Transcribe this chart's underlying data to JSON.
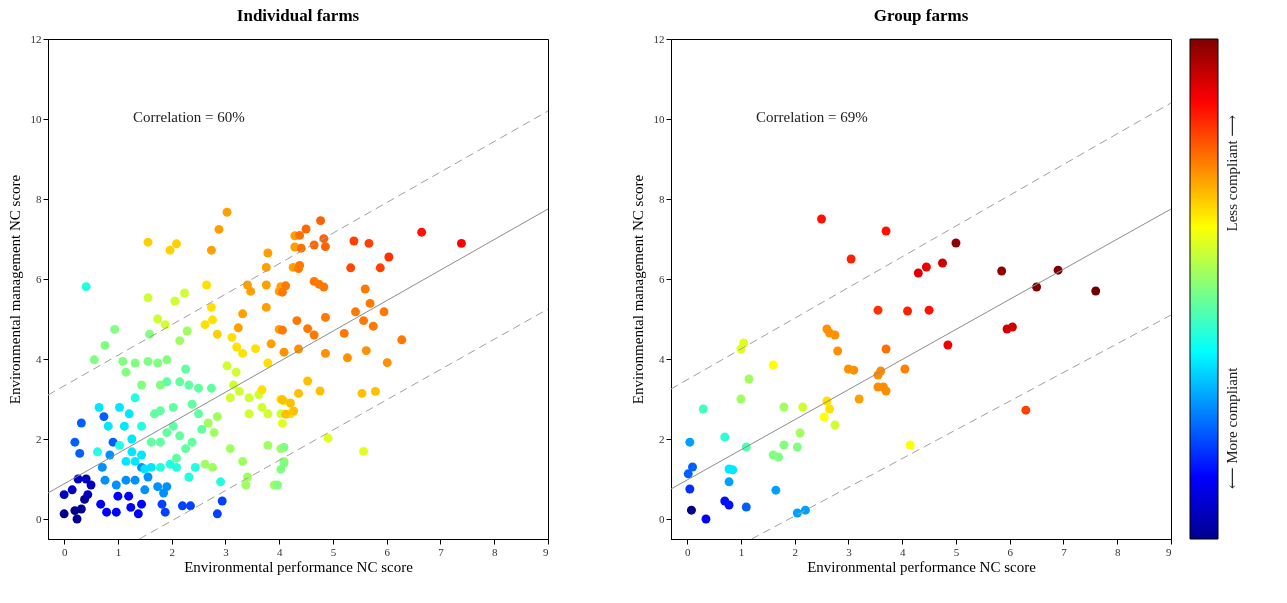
{
  "chart_data": [
    {
      "type": "scatter",
      "title": "Individual farms",
      "xlabel": "Environmental performance NC score",
      "ylabel": "Environmental management NC score",
      "xlim": [
        -0.3,
        9
      ],
      "ylim": [
        -0.5,
        12
      ],
      "xticks": [
        0,
        1,
        2,
        3,
        4,
        5,
        6,
        7,
        8,
        9
      ],
      "yticks": [
        0,
        2,
        4,
        6,
        8,
        10,
        12
      ],
      "marker": "circle",
      "annotations": [
        "Correlation = 60%"
      ],
      "series": [
        {
          "x": [
            0,
            0.24,
            0.2,
            0.32,
            0.38,
            0,
            0.15,
            0.26,
            0.41,
            0.5,
            0.44,
            0.68,
            0.79,
            0.97,
            1.0,
            1.2,
            1.24,
            1.38,
            1.44,
            1.82,
            1.88,
            2.2,
            2.35,
            2.85,
            2.94,
            0.2,
            0.29,
            0.32,
            0.74,
            0.91,
            0.97,
            0.76,
            0.71,
            0.85,
            1.15,
            1.32,
            1.44,
            1.56,
            1.74,
            1.91,
            1.85,
            1.5,
            0.65,
            0.82,
            1.03,
            1.21,
            1.12,
            1.26,
            1.26,
            1.15,
            1.32,
            1.44,
            1.5,
            1.62,
            1.79,
            1.97,
            2.09,
            2.32,
            2.44,
            1.32,
            1.44,
            0.41,
            2.91,
            0.62,
            1.03,
            0.56,
            0.76,
            0.94,
            1.09,
            1.15,
            1.32,
            1.44,
            1.59,
            1.56,
            1.74,
            1.91,
            1.79,
            1.91,
            1.68,
            1.79,
            2.03,
            1.91,
            1.79,
            1.62,
            2.03,
            2.15,
            2.09,
            2.26,
            2.38,
            2.15,
            2.26,
            2.32,
            2.38,
            2.5,
            2.5,
            2.74,
            2.56,
            2.68,
            2.79,
            2.85,
            2.62,
            2.76,
            3.09,
            3.32,
            3.41,
            3.38,
            3.91,
            3.79,
            4.03,
            4.09,
            2.15,
            2.29,
            1.56,
            2.06,
            2.24,
            1.74,
            1.88,
            3.03,
            3.15,
            3.26,
            3.44,
            3.68,
            3.79,
            3.09,
            3.2,
            3.44,
            4.03,
            3.62,
            4.09,
            2.65,
            2.74,
            2.62,
            2.76,
            3.12,
            3.21,
            3.32,
            3.56,
            3.79,
            3.68,
            4.03,
            4.21,
            1.56,
            1.97,
            2.09,
            2.85,
            2.74,
            2.88,
            3.03,
            3.41,
            3.47,
            3.76,
            4.03,
            4.0,
            3.76,
            3.32,
            3.24,
            3.85,
            4.0,
            3.79,
            3.76,
            4.26,
            4.29,
            4.29,
            4.77,
            4.5,
            4.38,
            4.83,
            4.41,
            4.65,
            4.86,
            5.39,
            5.67,
            6.65,
            7.39,
            6.04,
            5.33,
            5.88,
            4.36,
            4.38,
            4.65,
            4.74,
            4.83,
            4.12,
            4.06,
            5.6,
            5.69,
            5.42,
            5.95,
            4.86,
            4.33,
            4.06,
            4.53,
            4.65,
            5.57,
            5.75,
            5.21,
            6.28,
            4.09,
            4.36,
            4.86,
            5.27,
            5.62,
            6.01,
            4.53,
            4.76,
            4.06,
            4.21,
            4.12,
            4.27,
            4.36,
            5.54,
            5.79,
            4.06,
            4.91,
            5.57,
            4.09,
            4.09,
            4.03,
            3.97
          ],
          "values": [
            0.13,
            0,
            0.21,
            0.25,
            0.49,
            0.61,
            0.73,
            1.0,
            1.0,
            0.85,
            0.61,
            0.37,
            0.17,
            0.17,
            0.57,
            0.57,
            0.29,
            0.13,
            0.37,
            0.37,
            0.17,
            0.33,
            0.33,
            0.13,
            0.45,
            1.92,
            1.64,
            2.4,
            2.56,
            1.92,
            0.85,
            0.97,
            1.29,
            1.6,
            0.97,
            0.97,
            1.29,
            1.05,
            0.81,
            0.81,
            0.65,
            0.73,
            2.79,
            2.32,
            2.79,
            2.63,
            2.32,
            2.0,
            1.68,
            1.44,
            1.44,
            1.6,
            1.25,
            1.29,
            1.29,
            1.37,
            1.29,
            1.05,
            1.29,
            3.03,
            2.32,
            5.81,
            0.93,
            1.68,
            1.84,
            3.98,
            4.34,
            4.74,
            3.94,
            3.67,
            3.9,
            3.35,
            4.62,
            3.94,
            3.9,
            3.98,
            3.35,
            3.43,
            2.63,
            2.71,
            2.79,
            2.16,
            1.92,
            1.92,
            2.32,
            2.08,
            1.52,
            1.76,
            1.92,
            3.43,
            3.75,
            3.35,
            2.87,
            2.63,
            3.27,
            3.27,
            2.24,
            2.4,
            2.16,
            2.56,
            1.37,
            1.29,
            1.76,
            1.44,
            1.05,
            0.85,
            0.85,
            1.84,
            1.76,
            1.44,
            4.46,
            4.7,
            5.53,
            5.45,
            5.65,
            5.0,
            4.86,
            3.83,
            3.35,
            3.19,
            3.03,
            2.79,
            2.63,
            3.03,
            3.67,
            2.63,
            2.63,
            3.11,
            2.95,
            5.85,
            5.29,
            4.86,
            4.98,
            4.54,
            4.3,
            4.14,
            4.26,
            3.9,
            3.23,
            2.99,
            2.63,
            6.92,
            6.72,
            6.88,
            4.62,
            6.72,
            7.24,
            7.67,
            5.85,
            5.69,
            5.85,
            5.81,
            5.69,
            5.29,
            5.13,
            4.78,
            4.38,
            4.74,
            6.65,
            6.29,
            6.29,
            7.08,
            6.8,
            7.46,
            7.25,
            7.09,
            7.01,
            6.77,
            6.85,
            6.81,
            6.95,
            6.89,
            7.17,
            6.89,
            6.55,
            6.28,
            6.28,
            6.26,
            6.34,
            5.94,
            5.87,
            5.8,
            5.83,
            5.67,
            5.75,
            5.39,
            5.18,
            5.18,
            5.04,
            4.96,
            4.72,
            4.76,
            4.6,
            4.96,
            4.82,
            4.64,
            4.48,
            4.17,
            4.25,
            4.14,
            4.03,
            4.21,
            3.91,
            3.45,
            3.2,
            2.98,
            2.9,
            2.62,
            2.7,
            3.14,
            3.14,
            3.19,
            2.39,
            2.02,
            1.69,
            1.79,
            1.4,
            1.24,
            0.85
          ],
          "colors": [
            "#00008f",
            "#00008f",
            "#00008f",
            "#00008f",
            "#00008f",
            "#0000c0",
            "#0000c0",
            "#0000c0",
            "#0000c0",
            "#0000c0",
            "#0000c0",
            "#0000ff",
            "#0000ff",
            "#0000ff",
            "#0000ff",
            "#0000ff",
            "#0000ff",
            "#0000ff",
            "#0000ff",
            "#0040ff",
            "#0040ff",
            "#0040ff",
            "#0040ff",
            "#0040ff",
            "#0040ff",
            "#0060ff",
            "#0060ff",
            "#0060ff",
            "#0060ff",
            "#0060ff",
            "#0090ff",
            "#0090ff",
            "#0090ff",
            "#0090ff",
            "#0090ff",
            "#0090ff",
            "#0090ff",
            "#0090ff",
            "#0090ff",
            "#0090ff",
            "#0090ff",
            "#0090ff",
            "#00e8ff",
            "#00e8ff",
            "#00e8ff",
            "#00e8ff",
            "#00e8ff",
            "#00e8ff",
            "#00e8ff",
            "#00e8ff",
            "#00e8ff",
            "#00e8ff",
            "#00e8ff",
            "#00e8ff",
            "#20ffdf",
            "#20ffdf",
            "#20ffdf",
            "#20ffdf",
            "#20ffdf",
            "#20ffdf",
            "#20ffdf",
            "#20ffdf",
            "#20ffdf",
            "#20ffdf",
            "#20ffdf",
            "#80ff80",
            "#80ff80",
            "#80ff80",
            "#80ff80",
            "#80ff80",
            "#80ff80",
            "#80ff80",
            "#80ff80",
            "#80ff80",
            "#80ff80",
            "#80ff80",
            "#80ff80",
            "#60ffa0",
            "#60ffa0",
            "#60ffa0",
            "#60ffa0",
            "#60ffa0",
            "#60ffa0",
            "#60ffa0",
            "#60ffa0",
            "#60ffa0",
            "#60ffa0",
            "#60ffa0",
            "#60ffa0",
            "#60ffa0",
            "#60ffa0",
            "#60ffa0",
            "#60ffa0",
            "#60ffa0",
            "#60ffa0",
            "#60ffa0",
            "#60ffa0",
            "#a0ff60",
            "#a0ff60",
            "#a0ff60",
            "#a0ff60",
            "#a0ff60",
            "#a0ff60",
            "#a0ff60",
            "#a0ff60",
            "#a0ff60",
            "#a0ff60",
            "#a0ff60",
            "#a0ff60",
            "#a0ff60",
            "#a0ff60",
            "#a0ff60",
            "#d0ff30",
            "#d0ff30",
            "#d0ff30",
            "#d0ff30",
            "#d0ff30",
            "#d0ff30",
            "#d0ff30",
            "#d0ff30",
            "#d0ff30",
            "#d0ff30",
            "#d0ff30",
            "#d0ff30",
            "#d0ff30",
            "#d0ff30",
            "#d0ff30",
            "#d0ff30",
            "#d0ff30",
            "#ffe000",
            "#ffe000",
            "#ffe000",
            "#ffe000",
            "#ffe000",
            "#ffe000",
            "#ffe000",
            "#ffe000",
            "#ffe000",
            "#ffe000",
            "#ffe000",
            "#ffe000",
            "#ffd000",
            "#ffd000",
            "#ffd000",
            "#ffd000",
            "#ffa000",
            "#ffa000",
            "#ffa000",
            "#ffa000",
            "#ffa000",
            "#ffa000",
            "#ffa000",
            "#ffa000",
            "#ffa000",
            "#ffa000",
            "#ffa000",
            "#ffa000",
            "#ffa000",
            "#ffa000",
            "#ffa000",
            "#ffa000",
            "#ffa000",
            "#ffa000",
            "#ff6000",
            "#ff6800",
            "#ff7000",
            "#ff6000",
            "#ff7000",
            "#ff6800",
            "#ff6000",
            "#ff4000",
            "#ff4000",
            "#ff1000",
            "#ff0000",
            "#ff3000",
            "#ff4800",
            "#ff4000",
            "#ff7800",
            "#ff7800",
            "#ff7800",
            "#ff7800",
            "#ff7800",
            "#ff7800",
            "#ff7800",
            "#ff7800",
            "#ff7800",
            "#ff7800",
            "#ff7800",
            "#ff7800",
            "#ff7800",
            "#ff7800",
            "#ff7800",
            "#ff7800",
            "#ff7800",
            "#ff7800",
            "#ff7800",
            "#ff7800",
            "#ff9000",
            "#ff9000",
            "#ff9000",
            "#ff9000",
            "#ff9000",
            "#ff9000",
            "#ffc000",
            "#ffc000",
            "#ffc000",
            "#ffc000",
            "#ffc000",
            "#ffc000",
            "#ffc000",
            "#ffc000",
            "#ffc000",
            "#e0ff20",
            "#e0ff20",
            "#e0ff20",
            "#80ff80",
            "#80ff80",
            "#80ff80",
            "#80ff80"
          ]
        },
        {
          "type": "line",
          "marker": "none",
          "color": "#8c8c8c",
          "line_style": "solid",
          "x": [
            -0.3,
            9
          ],
          "values": [
            0.65,
            7.75
          ]
        },
        {
          "type": "line",
          "marker": "none",
          "color": "#a0a0a0",
          "line_style": "dashed",
          "x": [
            -0.3,
            9
          ],
          "values": [
            3.1,
            10.2
          ]
        },
        {
          "type": "line",
          "marker": "none",
          "color": "#a0a0a0",
          "line_style": "dashed",
          "x": [
            1.4,
            9
          ],
          "values": [
            -0.5,
            5.25
          ]
        }
      ]
    },
    {
      "type": "scatter",
      "title": "Group farms",
      "xlabel": "Environmental performance NC score",
      "ylabel": "Environmental management NC score",
      "xlim": [
        -0.3,
        9
      ],
      "ylim": [
        -0.5,
        12
      ],
      "xticks": [
        0,
        1,
        2,
        3,
        4,
        5,
        6,
        7,
        8,
        9
      ],
      "yticks": [
        0,
        2,
        4,
        6,
        8,
        10,
        12
      ],
      "marker": "circle",
      "annotations": [
        "Correlation = 69%",
        "Less compliant ⟶",
        "⟵ More compliant"
      ],
      "series": [
        {
          "x": [
            0.05,
            0.1,
            0.02,
            0.05,
            0.08,
            0.35,
            0.3,
            0.7,
            0.7,
            0.78,
            0.78,
            0.85,
            0.78,
            1.1,
            1.0,
            1.05,
            1.0,
            1.15,
            1.1,
            1.65,
            1.6,
            1.7,
            1.8,
            1.8,
            2.1,
            2.05,
            1.6,
            2.05,
            2.2,
            2.15,
            2.55,
            2.6,
            2.65,
            2.75,
            2.6,
            2.65,
            2.75,
            2.8,
            3.0,
            3.1,
            3.2,
            3.55,
            3.65,
            3.7,
            3.55,
            3.6,
            3.7,
            4.05,
            4.15,
            2.5,
            3.05,
            3.7,
            3.55,
            4.1,
            4.5,
            4.3,
            4.45,
            4.75,
            4.85,
            5.0,
            5.85,
            5.95,
            6.05,
            6.5,
            6.3,
            6.9,
            7.6
          ],
          "values": [
            1.92,
            1.3,
            1.13,
            0.75,
            0.22,
            0,
            2.75,
            2.05,
            0.45,
            0.35,
            1.25,
            1.23,
            0.93,
            0.3,
            4.25,
            4.4,
            3.0,
            3.5,
            1.8,
            0.72,
            1.6,
            1.55,
            2.8,
            1.85,
            2.15,
            1.8,
            3.85,
            0.15,
            0.22,
            2.8,
            2.55,
            2.95,
            2.75,
            2.35,
            4.75,
            4.65,
            4.6,
            4.2,
            3.75,
            3.72,
            3.0,
            3.3,
            3.3,
            3.2,
            3.6,
            3.7,
            4.25,
            3.75,
            1.85,
            7.5,
            6.5,
            7.2,
            5.22,
            5.2,
            5.22,
            6.15,
            6.3,
            6.4,
            4.35,
            6.9,
            6.2,
            4.75,
            4.8,
            5.8,
            2.72,
            6.22,
            5.7
          ],
          "colors": [
            "#00a0ff",
            "#0060ff",
            "#0060ff",
            "#0030ff",
            "#00008f",
            "#0000ff",
            "#40ffbf",
            "#30ffcf",
            "#0010ff",
            "#0010ff",
            "#00e8ff",
            "#00e8ff",
            "#00a0ff",
            "#0060ff",
            "#e0ff20",
            "#e0ff20",
            "#a0ff60",
            "#a0ff60",
            "#50ffaf",
            "#00a0ff",
            "#80ff80",
            "#80ff80",
            "#a0ff60",
            "#80ff80",
            "#a0ff60",
            "#80ff80",
            "#ffff00",
            "#00a0ff",
            "#00a0ff",
            "#d0ff30",
            "#ffff00",
            "#ffe000",
            "#ffe000",
            "#d0ff30",
            "#ff9000",
            "#ff9000",
            "#ff9000",
            "#ff9000",
            "#ff9000",
            "#ff9000",
            "#ffa000",
            "#ff8c00",
            "#ff8c00",
            "#ff8c00",
            "#ff8c00",
            "#ff8c00",
            "#ff7000",
            "#ff8000",
            "#ffff00",
            "#ff1000",
            "#ff2000",
            "#ff1000",
            "#ff3000",
            "#ff2000",
            "#ff1000",
            "#e00000",
            "#f00000",
            "#d00000",
            "#f00000",
            "#900000",
            "#900000",
            "#d00000",
            "#d00000",
            "#800000",
            "#ff4000",
            "#800000",
            "#700000"
          ]
        },
        {
          "type": "line",
          "marker": "none",
          "color": "#8c8c8c",
          "line_style": "solid",
          "x": [
            -0.3,
            9
          ],
          "values": [
            0.75,
            7.75
          ]
        },
        {
          "type": "line",
          "marker": "none",
          "color": "#a0a0a0",
          "line_style": "dashed",
          "x": [
            -0.3,
            9
          ],
          "values": [
            3.25,
            10.4
          ]
        },
        {
          "type": "line",
          "marker": "none",
          "color": "#a0a0a0",
          "line_style": "dashed",
          "x": [
            1.2,
            9
          ],
          "values": [
            -0.5,
            5.1
          ]
        }
      ]
    }
  ]
}
